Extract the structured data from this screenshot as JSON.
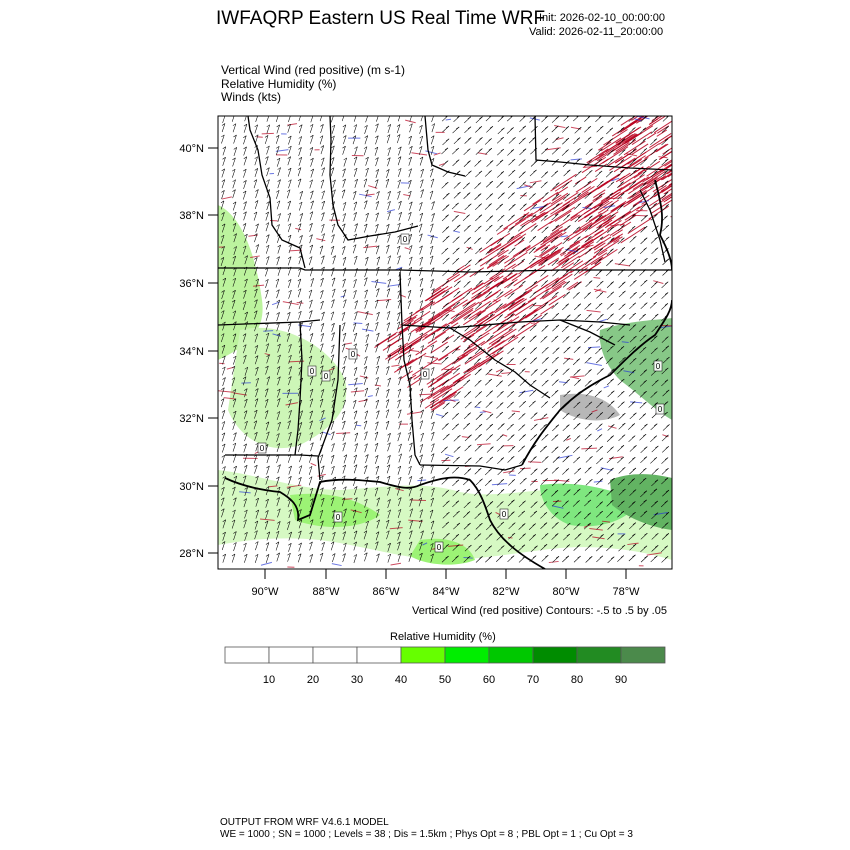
{
  "header": {
    "title": "IWFAQRP Eastern US Real Time WRF",
    "init": "Init: 2026-02-10_00:00:00",
    "valid": "Valid: 2026-02-11_20:00:00"
  },
  "fields": [
    "Vertical Wind (red positive)   (m s-1)",
    "Relative Humidity   (%)",
    "Winds   (kts)"
  ],
  "map": {
    "lat_labels": [
      "40°N",
      "38°N",
      "36°N",
      "34°N",
      "32°N",
      "30°N",
      "28°N"
    ],
    "lon_labels": [
      "90°W",
      "88°W",
      "86°W",
      "84°W",
      "82°W",
      "80°W",
      "78°W"
    ],
    "contour_zero_label": "0",
    "colors": {
      "updraft": "#b8001e",
      "downdraft": "#2a3cd6",
      "barb": "#000000",
      "border": "#000000"
    }
  },
  "contour_note": "Vertical Wind (red positive) Contours: -.5 to .5 by .05",
  "colorbar": {
    "title": "Relative Humidity  (%)",
    "ticks": [
      "10",
      "20",
      "30",
      "40",
      "50",
      "60",
      "70",
      "80",
      "90"
    ],
    "colors": [
      "#ffffff",
      "#ffffff",
      "#ffffff",
      "#ffffff",
      "#66ff00",
      "#00ee00",
      "#00c800",
      "#008c00",
      "#228b22",
      "#4b8a4b"
    ]
  },
  "footer": {
    "line1": "OUTPUT FROM WRF V4.6.1 MODEL",
    "line2": "WE = 1000 ; SN = 1000 ; Levels = 38 ; Dis = 1.5km ; Phys Opt = 8 ; PBL Opt = 1 ; Cu Opt = 3"
  }
}
